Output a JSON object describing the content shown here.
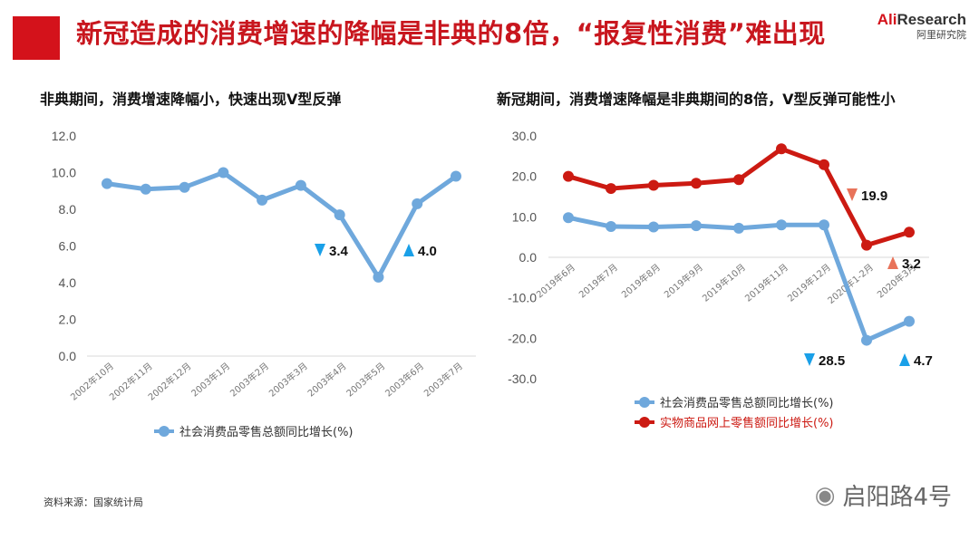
{
  "header": {
    "title": "新冠造成的消费增速的降幅是非典的8倍，“报复性消费”难出现",
    "logo_main_red": "Ali",
    "logo_main_dark": "Research",
    "logo_sub": "阿里研究院"
  },
  "footer": {
    "source": "资料来源：国家统计局",
    "watermark": "启阳路4号",
    "watermark_icon": "wechat-icon"
  },
  "colors": {
    "blue": "#6fa8dc",
    "red": "#cc1a12",
    "axis": "#d9d9d9",
    "up_blue": "#1aa0e8",
    "up_red": "#e8735a"
  },
  "chart_data": [
    {
      "type": "line",
      "title": "非典期间，消费增速降幅小，快速出现V型反弹",
      "categories": [
        "2002年10月",
        "2002年11月",
        "2002年12月",
        "2003年1月",
        "2003年2月",
        "2003年3月",
        "2003年4月",
        "2003年5月",
        "2003年6月",
        "2003年7月"
      ],
      "series": [
        {
          "name": "社会消费品零售总额同比增长(%)",
          "values": [
            9.4,
            9.1,
            9.2,
            10.0,
            8.5,
            9.3,
            7.7,
            4.3,
            8.3,
            9.8
          ]
        }
      ],
      "yticks": [
        "12.0",
        "10.0",
        "8.0",
        "6.0",
        "4.0",
        "2.0",
        "0.0"
      ],
      "ylim": [
        0,
        12
      ],
      "annotations": [
        {
          "direction": "down",
          "text": "3.4"
        },
        {
          "direction": "up",
          "text": "4.0"
        }
      ],
      "legend": "bottom"
    },
    {
      "type": "line",
      "title": "新冠期间，消费增速降幅是非典期间的8倍，V型反弹可能性小",
      "categories": [
        "2019年6月",
        "2019年7月",
        "2019年8月",
        "2019年9月",
        "2019年10月",
        "2019年11月",
        "2019年12月",
        "2020年1-2月",
        "2020年3月"
      ],
      "series": [
        {
          "name": "社会消费品零售总额同比增长(%)",
          "values": [
            9.8,
            7.6,
            7.5,
            7.8,
            7.2,
            8.0,
            8.0,
            -20.5,
            -15.8
          ]
        },
        {
          "name": "实物商品网上零售额同比增长(%)",
          "values": [
            20.0,
            17.0,
            17.8,
            18.3,
            19.2,
            26.8,
            22.9,
            3.0,
            6.2
          ]
        }
      ],
      "yticks": [
        "30.0",
        "20.0",
        "10.0",
        "0.0",
        "-10.0",
        "-20.0",
        "-30.0"
      ],
      "ylim": [
        -30,
        30
      ],
      "annotations": [
        {
          "direction": "down",
          "text": "19.9"
        },
        {
          "direction": "up",
          "text": "3.2"
        },
        {
          "direction": "down",
          "text": "28.5"
        },
        {
          "direction": "up",
          "text": "4.7"
        }
      ],
      "legend": "bottom"
    }
  ]
}
